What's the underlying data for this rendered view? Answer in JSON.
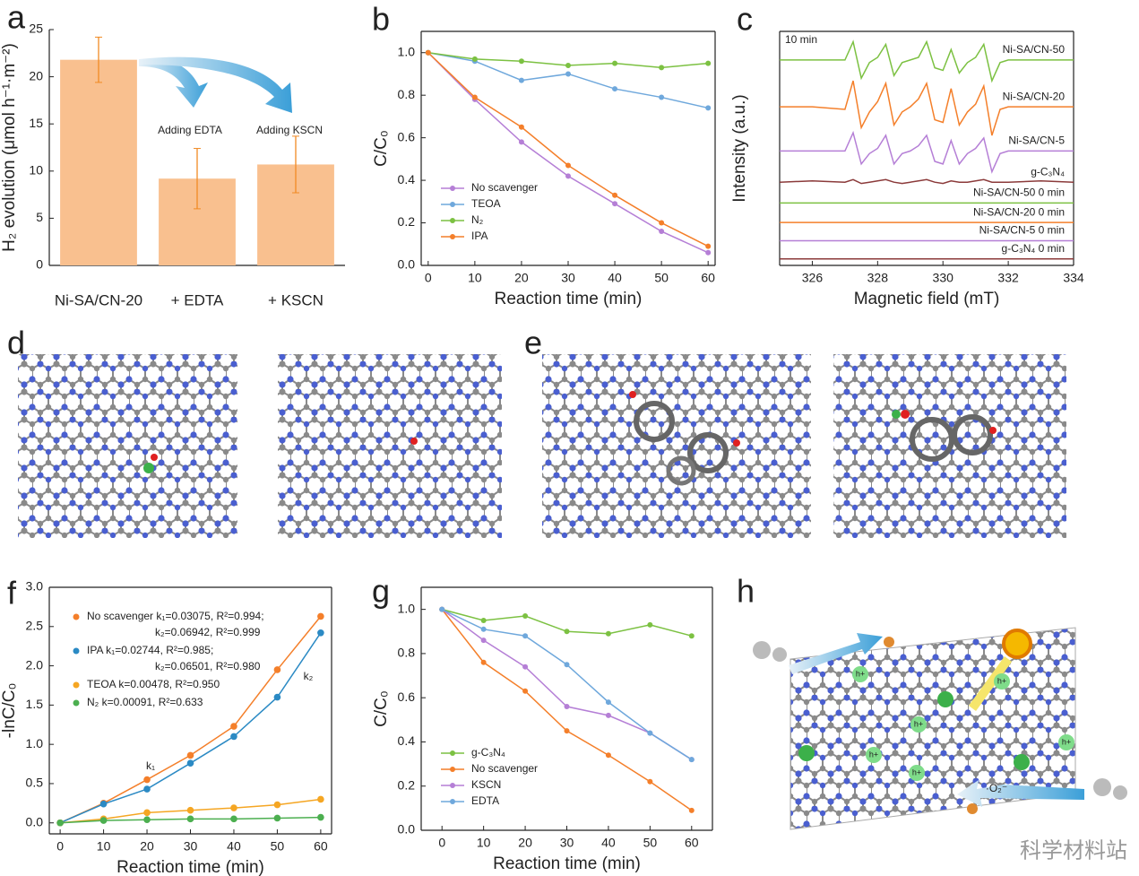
{
  "chart_data": [
    {
      "panel": "a",
      "type": "bar",
      "ylabel": "H₂ evolution (μmol h⁻¹·m⁻²)",
      "categories": [
        "Ni-SA/CN-20",
        "+ EDTA",
        "+ KSCN"
      ],
      "values": [
        21.8,
        9.2,
        10.7
      ],
      "errors": [
        2.4,
        3.2,
        3.0
      ],
      "color": "#f9c08f",
      "error_color": "#f08a24",
      "ylim": [
        0,
        25
      ],
      "yticks": [
        0,
        5,
        10,
        15,
        20,
        25
      ],
      "annotations": [
        "Adding EDTA",
        "Adding KSCN"
      ],
      "box": false
    },
    {
      "panel": "b",
      "type": "line",
      "xlabel": "Reaction time (min)",
      "ylabel": "C/C₀",
      "x": [
        0,
        10,
        20,
        30,
        40,
        50,
        60
      ],
      "xlim": [
        -1.5,
        61.5
      ],
      "xticks": [
        0,
        10,
        20,
        30,
        40,
        50,
        60
      ],
      "ylim": [
        0,
        1.1
      ],
      "yticks": [
        {
          "value": 0,
          "label": "0.0"
        },
        {
          "value": 0.2,
          "label": "0.2"
        },
        {
          "value": 0.4,
          "label": "0.4"
        },
        {
          "value": 0.6,
          "label": "0.6"
        },
        {
          "value": 0.8,
          "label": "0.8"
        },
        {
          "value": 1,
          "label": "1.0"
        }
      ],
      "markers": true,
      "legend": "lower left",
      "box": true,
      "series": [
        {
          "name": "No scavenger",
          "color": "#b57fd6",
          "values": [
            1.0,
            0.78,
            0.58,
            0.42,
            0.29,
            0.16,
            0.06
          ]
        },
        {
          "name": "TEOA",
          "color": "#6fa8dc",
          "values": [
            1.0,
            0.96,
            0.87,
            0.9,
            0.83,
            0.79,
            0.74
          ]
        },
        {
          "name": "N₂",
          "color": "#7cc142",
          "values": [
            1.0,
            0.97,
            0.96,
            0.94,
            0.95,
            0.93,
            0.95
          ]
        },
        {
          "name": "IPA",
          "color": "#f47f2a",
          "values": [
            1.0,
            0.79,
            0.65,
            0.47,
            0.33,
            0.2,
            0.09
          ]
        }
      ]
    },
    {
      "panel": "c",
      "type": "line",
      "xlabel": "Magnetic field (mT)",
      "ylabel": "Intensity (a.u.)",
      "x": [
        325,
        326,
        327,
        327.25,
        327.5,
        327.75,
        328,
        328.25,
        328.5,
        328.75,
        329,
        329.25,
        329.5,
        329.75,
        330,
        330.25,
        330.5,
        330.75,
        331,
        331.25,
        331.5,
        331.75,
        332,
        333,
        334
      ],
      "xlim": [
        325,
        334
      ],
      "xticks": [
        326,
        328,
        330,
        332,
        334
      ],
      "ylim": [
        1,
        10
      ],
      "markers": false,
      "legend": "inline",
      "box": true,
      "annotations": [
        "10 min"
      ],
      "series": [
        {
          "name": "Ni-SA/CN-50",
          "color": "#7cc142",
          "values": [
            8.9,
            8.9,
            8.9,
            9.6,
            8.2,
            8.8,
            9.0,
            9.5,
            8.3,
            8.8,
            8.9,
            9.0,
            9.6,
            8.6,
            8.5,
            9.3,
            8.4,
            8.8,
            9.0,
            9.5,
            8.1,
            8.8,
            8.9,
            8.9,
            8.9
          ]
        },
        {
          "name": "Ni-SA/CN-20",
          "color": "#f47f2a",
          "values": [
            7.1,
            7.1,
            7.0,
            8.1,
            6.3,
            6.9,
            7.3,
            8.0,
            6.4,
            6.9,
            7.1,
            7.4,
            8.0,
            6.6,
            6.5,
            7.8,
            6.4,
            6.9,
            7.2,
            7.9,
            6.0,
            7.0,
            7.1,
            7.1,
            7.1
          ]
        },
        {
          "name": "Ni-SA/CN-5",
          "color": "#b57fd6",
          "values": [
            5.4,
            5.4,
            5.4,
            6.1,
            4.9,
            5.3,
            5.5,
            6.0,
            4.9,
            5.3,
            5.4,
            5.6,
            6.0,
            5.0,
            4.9,
            5.8,
            4.9,
            5.3,
            5.5,
            5.9,
            4.6,
            5.3,
            5.4,
            5.4,
            5.4
          ]
        },
        {
          "name": "g-C₃N₄",
          "color": "#8b3a3a",
          "values": [
            4.2,
            4.25,
            4.2,
            4.3,
            4.15,
            4.2,
            4.25,
            4.3,
            4.2,
            4.15,
            4.2,
            4.25,
            4.3,
            4.2,
            4.15,
            4.25,
            4.2,
            4.2,
            4.25,
            4.3,
            4.2,
            4.2,
            4.2,
            4.25,
            4.2
          ]
        },
        {
          "name": "Ni-SA/CN-50 0 min",
          "color": "#7cc142",
          "values": [
            3.4,
            3.4,
            3.4,
            3.4,
            3.4,
            3.4,
            3.4,
            3.4,
            3.4,
            3.4,
            3.4,
            3.4,
            3.4,
            3.4,
            3.4,
            3.4,
            3.4,
            3.4,
            3.4,
            3.4,
            3.4,
            3.4,
            3.4,
            3.4,
            3.4
          ]
        },
        {
          "name": "Ni-SA/CN-20 0 min",
          "color": "#f47f2a",
          "values": [
            2.65,
            2.65,
            2.65,
            2.65,
            2.65,
            2.65,
            2.65,
            2.65,
            2.65,
            2.65,
            2.65,
            2.65,
            2.65,
            2.65,
            2.65,
            2.65,
            2.65,
            2.65,
            2.65,
            2.65,
            2.65,
            2.65,
            2.65,
            2.65,
            2.65
          ]
        },
        {
          "name": "Ni-SA/CN-5 0 min",
          "color": "#b57fd6",
          "values": [
            1.95,
            1.95,
            1.95,
            1.95,
            1.95,
            1.95,
            1.95,
            1.95,
            1.95,
            1.95,
            1.95,
            1.95,
            1.95,
            1.95,
            1.95,
            1.95,
            1.95,
            1.95,
            1.95,
            1.95,
            1.95,
            1.95,
            1.95,
            1.95,
            1.95
          ]
        },
        {
          "name": "g-C₃N₄ 0 min",
          "color": "#8b3a3a",
          "values": [
            1.25,
            1.25,
            1.25,
            1.25,
            1.25,
            1.25,
            1.25,
            1.25,
            1.25,
            1.25,
            1.25,
            1.25,
            1.25,
            1.25,
            1.25,
            1.25,
            1.25,
            1.25,
            1.25,
            1.25,
            1.25,
            1.25,
            1.25,
            1.25,
            1.25
          ]
        }
      ]
    },
    {
      "panel": "f",
      "type": "line",
      "xlabel": "Reaction time (min)",
      "ylabel": "-lnC/C₀",
      "x": [
        0,
        10,
        20,
        30,
        40,
        50,
        60
      ],
      "xlim": [
        -2.5,
        62.5
      ],
      "xticks": [
        0,
        10,
        20,
        30,
        40,
        50,
        60
      ],
      "ylim": [
        -0.14,
        3.0
      ],
      "yticks": [
        {
          "value": 0,
          "label": "0.0"
        },
        {
          "value": 0.5,
          "label": "0.5"
        },
        {
          "value": 1,
          "label": "1.0"
        },
        {
          "value": 1.5,
          "label": "1.5"
        },
        {
          "value": 2,
          "label": "2.0"
        },
        {
          "value": 2.5,
          "label": "2.5"
        },
        {
          "value": 3,
          "label": "3.0"
        }
      ],
      "markers": true,
      "legend": "upper left",
      "box": true,
      "annotations": [
        "k₁",
        "k₂"
      ],
      "series": [
        {
          "name": "No scavenger",
          "fit_labels": [
            "k₁=0.03075, R²=0.994;",
            "k₂=0.06942, R²=0.999"
          ],
          "color": "#f47f2a",
          "values": [
            0,
            0.25,
            0.55,
            0.86,
            1.23,
            1.95,
            2.63
          ]
        },
        {
          "name": "IPA",
          "fit_labels": [
            "k₁=0.02744, R²=0.985;",
            "k₂=0.06501, R²=0.980"
          ],
          "color": "#2b8ac4",
          "values": [
            0,
            0.24,
            0.43,
            0.76,
            1.1,
            1.6,
            2.42
          ]
        },
        {
          "name": "TEOA",
          "fit_labels": [
            "k=0.00478, R²=0.950"
          ],
          "color": "#f5a623",
          "values": [
            0,
            0.05,
            0.13,
            0.16,
            0.19,
            0.23,
            0.3
          ]
        },
        {
          "name": "N₂",
          "fit_labels": [
            "k=0.00091, R²=0.633"
          ],
          "color": "#4caf50",
          "values": [
            0,
            0.03,
            0.04,
            0.05,
            0.05,
            0.06,
            0.07
          ]
        }
      ]
    },
    {
      "panel": "g",
      "type": "line",
      "xlabel": "Reaction time (min)",
      "ylabel": "C/C₀",
      "x": [
        0,
        10,
        20,
        30,
        40,
        50,
        60
      ],
      "xlim": [
        -5,
        65
      ],
      "xticks": [
        0,
        10,
        20,
        30,
        40,
        50,
        60
      ],
      "ylim": [
        0,
        1.1
      ],
      "yticks": [
        {
          "value": 0,
          "label": "0.0"
        },
        {
          "value": 0.2,
          "label": "0.2"
        },
        {
          "value": 0.4,
          "label": "0.4"
        },
        {
          "value": 0.6,
          "label": "0.6"
        },
        {
          "value": 0.8,
          "label": "0.8"
        },
        {
          "value": 1,
          "label": "1.0"
        }
      ],
      "markers": true,
      "legend": "lower left",
      "box": true,
      "series": [
        {
          "name": "g-C₃N₄",
          "color": "#7cc142",
          "values": [
            1.0,
            0.95,
            0.97,
            0.9,
            0.89,
            0.93,
            0.88
          ]
        },
        {
          "name": "No scavenger",
          "color": "#f47f2a",
          "values": [
            1.0,
            0.76,
            0.63,
            0.45,
            0.34,
            0.22,
            0.09
          ]
        },
        {
          "name": "KSCN",
          "color": "#b57fd6",
          "values": [
            1.0,
            0.86,
            0.74,
            0.56,
            0.52,
            0.44,
            0.32
          ]
        },
        {
          "name": "EDTA",
          "color": "#6fa8dc",
          "values": [
            1.0,
            0.91,
            0.88,
            0.75,
            0.58,
            0.44,
            0.32
          ]
        }
      ]
    }
  ],
  "illustrations": [
    {
      "panel": "d"
    },
    {
      "panel": "e"
    },
    {
      "panel": "h",
      "hole_label": "h+",
      "radical_label": "·O₂⁻"
    }
  ],
  "watermark": "科学材料站"
}
